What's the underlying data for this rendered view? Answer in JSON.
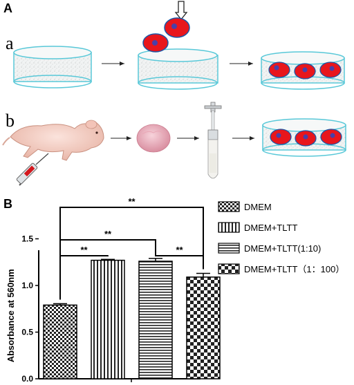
{
  "panel_a": {
    "letter": "A",
    "row_a_label": "a",
    "row_b_label": "b"
  },
  "panel_b": {
    "letter": "B"
  },
  "chart_data": {
    "type": "bar",
    "categories": [
      "DMEM",
      "DMEM+TLTT",
      "DMEM+TLTT(1:10)",
      "DMEM+TLTT（1：100）"
    ],
    "values": [
      0.79,
      1.27,
      1.26,
      1.09
    ],
    "errors": [
      0.015,
      0.01,
      0.03,
      0.04
    ],
    "ylabel": "Absorbance at 560nm",
    "ylim": [
      0.0,
      1.6
    ],
    "yticks": [
      "0.0",
      "0.5",
      "1.0",
      "1.5"
    ],
    "legend_position": "top-right",
    "legend": [
      "DMEM",
      "DMEM+TLTT",
      "DMEM+TLTT(1:10)",
      "DMEM+TLTT（1：100）"
    ],
    "significance": [
      {
        "from": 0,
        "to": 1,
        "label": "**"
      },
      {
        "from": 0,
        "to": 2,
        "label": "**"
      },
      {
        "from": 0,
        "to": 3,
        "label": "**"
      },
      {
        "from": 2,
        "to": 3,
        "label": "**"
      }
    ]
  }
}
